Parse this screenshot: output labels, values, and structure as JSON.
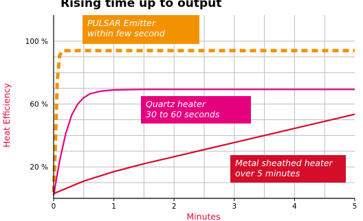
{
  "chart_data": {
    "type": "line",
    "title": "Rising time up to output",
    "xlabel": "Minutes",
    "ylabel": "Heat Efficiency",
    "xlim": [
      0,
      5
    ],
    "ylim": [
      0,
      100
    ],
    "x_ticks": [
      "0",
      "1",
      "2",
      "3",
      "4",
      "5"
    ],
    "y_ticks": [
      "20 %",
      "60 %",
      "100 %"
    ],
    "y_tick_values": [
      20,
      60,
      100
    ],
    "grid": true,
    "series": [
      {
        "label": "PULSAR Emitter within few second",
        "color": "#f39200",
        "style": "dashed",
        "points": [
          [
            0,
            4
          ],
          [
            0.03,
            35
          ],
          [
            0.06,
            75
          ],
          [
            0.1,
            91
          ],
          [
            0.15,
            94
          ],
          [
            5,
            94
          ]
        ]
      },
      {
        "label": "Quartz heater 30 to 60 seconds",
        "color": "#e5007e",
        "style": "solid",
        "points": [
          [
            0,
            2
          ],
          [
            0.1,
            24
          ],
          [
            0.2,
            41
          ],
          [
            0.3,
            53
          ],
          [
            0.4,
            60
          ],
          [
            0.5,
            64
          ],
          [
            0.6,
            66.5
          ],
          [
            0.8,
            68.3
          ],
          [
            1.0,
            69
          ],
          [
            1.5,
            69.3
          ],
          [
            5,
            69.3
          ]
        ]
      },
      {
        "label": "Metal sheathed heater over 5 minutes",
        "color": "#d40d2b",
        "style": "solid",
        "points": [
          [
            0,
            3
          ],
          [
            0.5,
            11
          ],
          [
            1,
            17
          ],
          [
            1.5,
            22
          ],
          [
            2,
            26.5
          ],
          [
            2.5,
            31
          ],
          [
            3,
            35.5
          ],
          [
            3.5,
            40
          ],
          [
            4,
            44.5
          ],
          [
            4.5,
            49
          ],
          [
            5,
            53.5
          ]
        ]
      }
    ],
    "annotations": [
      {
        "lines": [
          "PULSAR Emitter",
          "within few second"
        ],
        "color": "#f39200"
      },
      {
        "lines": [
          "Quartz heater",
          "30 to 60 seconds"
        ],
        "color": "#e5007e"
      },
      {
        "lines": [
          "Metal sheathed heater",
          "over 5 minutes"
        ],
        "color": "#d40d2b"
      }
    ],
    "label_colors": {
      "xlabel": "#e30a3a",
      "ylabel": "#e30a3a"
    }
  }
}
